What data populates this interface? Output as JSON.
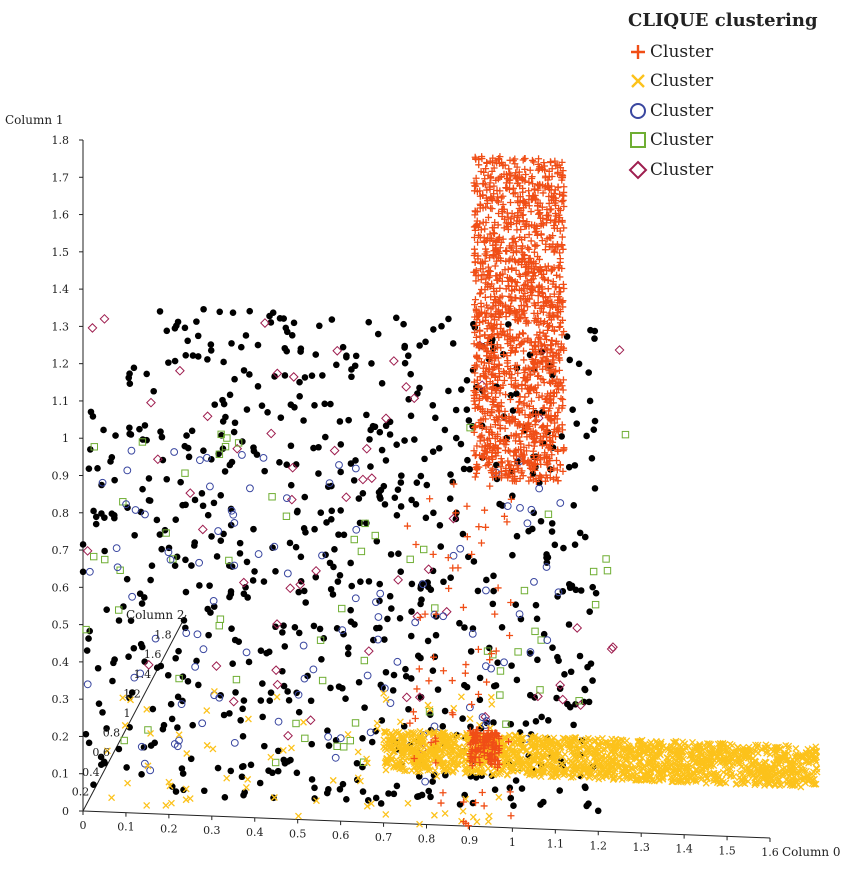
{
  "chart_data": {
    "type": "scatter",
    "title": "CLIQUE clustering",
    "axes": {
      "x": {
        "label": "Column 0",
        "range": [
          0,
          1.6
        ],
        "ticks": [
          "0",
          "0.1",
          "0.2",
          "0.3",
          "0.4",
          "0.5",
          "0.6",
          "0.7",
          "0.8",
          "0.9",
          "1",
          "1.1",
          "1.2",
          "1.3",
          "1.4",
          "1.5",
          "1.6"
        ]
      },
      "y": {
        "label": "Column 1",
        "range": [
          0,
          1.8
        ],
        "ticks": [
          "0",
          "0.1",
          "0.2",
          "0.3",
          "0.4",
          "0.5",
          "0.6",
          "0.7",
          "0.8",
          "0.9",
          "1",
          "1.1",
          "1.2",
          "1.3",
          "1.4",
          "1.5",
          "1.6",
          "1.7",
          "1.8"
        ]
      },
      "z": {
        "label": "Column 2",
        "range": [
          0,
          2.0
        ],
        "ticks": [
          "0",
          "0.2",
          "0.4",
          "0.6",
          "0.8",
          "1",
          "1.2",
          "1.4",
          "1.6",
          "1.8"
        ]
      }
    },
    "grid": false,
    "legend_position": "top-right",
    "series": [
      {
        "name": "Cluster",
        "marker": "plus",
        "color": "#f04e16",
        "regions": [
          {
            "x": [
              0.91,
              1.12
            ],
            "y": [
              0.93,
              1.8
            ],
            "count": 1500
          },
          {
            "x": [
              0.9,
              0.97
            ],
            "y": [
              0.16,
              0.26
            ],
            "count": 120
          },
          {
            "x": [
              0.75,
              1.0
            ],
            "y": [
              0.0,
              0.95
            ],
            "count": 70
          }
        ]
      },
      {
        "name": "Cluster",
        "marker": "x",
        "color": "#fcc21b",
        "regions": [
          {
            "x": [
              0.7,
              1.71
            ],
            "y": [
              0.14,
              0.25
            ],
            "count": 1800
          },
          {
            "x": [
              0.0,
              1.0
            ],
            "y": [
              0.0,
              0.35
            ],
            "count": 80
          }
        ]
      },
      {
        "name": "Cluster",
        "marker": "circle",
        "color": "#3a47a0",
        "regions": [
          {
            "x": [
              0.0,
              1.15
            ],
            "y": [
              0.1,
              1.0
            ],
            "count": 110
          }
        ]
      },
      {
        "name": "Cluster",
        "marker": "square",
        "color": "#6fae33",
        "regions": [
          {
            "x": [
              0.0,
              1.3
            ],
            "y": [
              0.15,
              1.08
            ],
            "count": 65
          }
        ]
      },
      {
        "name": "Cluster",
        "marker": "diamond",
        "color": "#9e1e4f",
        "regions": [
          {
            "x": [
              0.0,
              1.25
            ],
            "y": [
              0.2,
              1.33
            ],
            "count": 60
          }
        ]
      },
      {
        "marker": "dot",
        "color": "#000000",
        "regions": [
          {
            "x": [
              0.0,
              1.2
            ],
            "y": [
              0.05,
              1.36
            ],
            "count": 760
          }
        ]
      }
    ]
  }
}
